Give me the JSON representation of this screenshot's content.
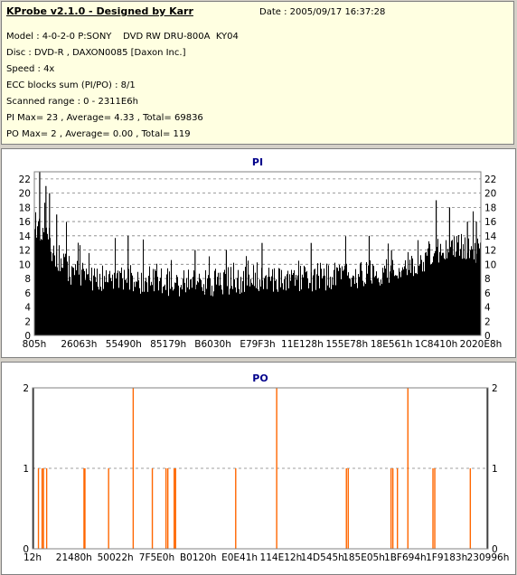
{
  "info": {
    "title": "KProbe v2.1.0 - Designed by Karr",
    "date": "Date : 2005/09/17 16:37:28",
    "lines": [
      "Model : 4-0-2-0 P:SONY    DVD RW DRU-800A  KY04",
      "Disc : DVD-R , DAXON0085 [Daxon Inc.]",
      "Speed : 4x",
      "ECC blocks sum (PI/PO) : 8/1",
      "Scanned range : 0 - 2311E6h",
      "PI Max= 23 , Average= 4.33 , Total= 69836",
      "PO Max= 2 , Average= 0.00 , Total= 119"
    ]
  },
  "colors": {
    "pi": "#000000",
    "po": "#ff6600",
    "background": "#ffffff",
    "grid": "#808080"
  },
  "chart_data": [
    {
      "type": "bar",
      "title": "PI",
      "ylim": [
        0,
        23
      ],
      "yticks": [
        0,
        2,
        4,
        6,
        8,
        10,
        12,
        14,
        16,
        18,
        20,
        22
      ],
      "xticks": [
        "805h",
        "26063h",
        "55490h",
        "85179h",
        "B6030h",
        "E79F3h",
        "11E128h",
        "155E78h",
        "18E561h",
        "1C8410h",
        "2020E8h"
      ],
      "grid": "dashed horizontal",
      "profile_x": [
        0,
        0.02,
        0.04,
        0.08,
        0.15,
        0.2,
        0.3,
        0.4,
        0.5,
        0.6,
        0.7,
        0.78,
        0.85,
        0.9,
        0.95,
        1
      ],
      "profile_y": [
        14,
        15,
        12,
        9,
        8,
        8,
        7.5,
        7.5,
        8,
        8,
        8.5,
        9,
        10,
        12,
        12.5,
        12
      ],
      "peaks": [
        {
          "x": 0.012,
          "y": 23
        },
        {
          "x": 0.026,
          "y": 21
        },
        {
          "x": 0.034,
          "y": 20
        },
        {
          "x": 0.05,
          "y": 17
        },
        {
          "x": 0.21,
          "y": 14
        },
        {
          "x": 0.36,
          "y": 12
        },
        {
          "x": 0.43,
          "y": 12
        },
        {
          "x": 0.51,
          "y": 13
        },
        {
          "x": 0.62,
          "y": 13
        },
        {
          "x": 0.75,
          "y": 14
        },
        {
          "x": 0.8,
          "y": 12
        },
        {
          "x": 0.9,
          "y": 19
        },
        {
          "x": 0.93,
          "y": 18
        },
        {
          "x": 0.97,
          "y": 16
        },
        {
          "x": 0.99,
          "y": 16
        }
      ]
    },
    {
      "type": "bar",
      "title": "PO",
      "ylim": [
        0,
        2
      ],
      "yticks": [
        0,
        1,
        2
      ],
      "xticks": [
        "12h",
        "21480h",
        "50022h",
        "7F5E0h",
        "B0120h",
        "E0E41h",
        "114E12h",
        "14D545h",
        "185E05h",
        "1BF694h",
        "1F9183h",
        "230996h"
      ],
      "grid": "dashed horizontal",
      "points": [
        {
          "x": 0.0,
          "y": 2
        },
        {
          "x": 0.012,
          "y": 1
        },
        {
          "x": 0.02,
          "y": 1
        },
        {
          "x": 0.023,
          "y": 1
        },
        {
          "x": 0.03,
          "y": 1
        },
        {
          "x": 0.112,
          "y": 1
        },
        {
          "x": 0.114,
          "y": 1
        },
        {
          "x": 0.166,
          "y": 1
        },
        {
          "x": 0.22,
          "y": 2
        },
        {
          "x": 0.262,
          "y": 1
        },
        {
          "x": 0.292,
          "y": 1
        },
        {
          "x": 0.296,
          "y": 1
        },
        {
          "x": 0.31,
          "y": 1
        },
        {
          "x": 0.313,
          "y": 1
        },
        {
          "x": 0.445,
          "y": 1
        },
        {
          "x": 0.535,
          "y": 2
        },
        {
          "x": 0.688,
          "y": 1
        },
        {
          "x": 0.692,
          "y": 1
        },
        {
          "x": 0.786,
          "y": 1
        },
        {
          "x": 0.79,
          "y": 1
        },
        {
          "x": 0.8,
          "y": 1
        },
        {
          "x": 0.823,
          "y": 2
        },
        {
          "x": 0.878,
          "y": 1
        },
        {
          "x": 0.882,
          "y": 1
        },
        {
          "x": 0.96,
          "y": 1
        }
      ]
    }
  ]
}
